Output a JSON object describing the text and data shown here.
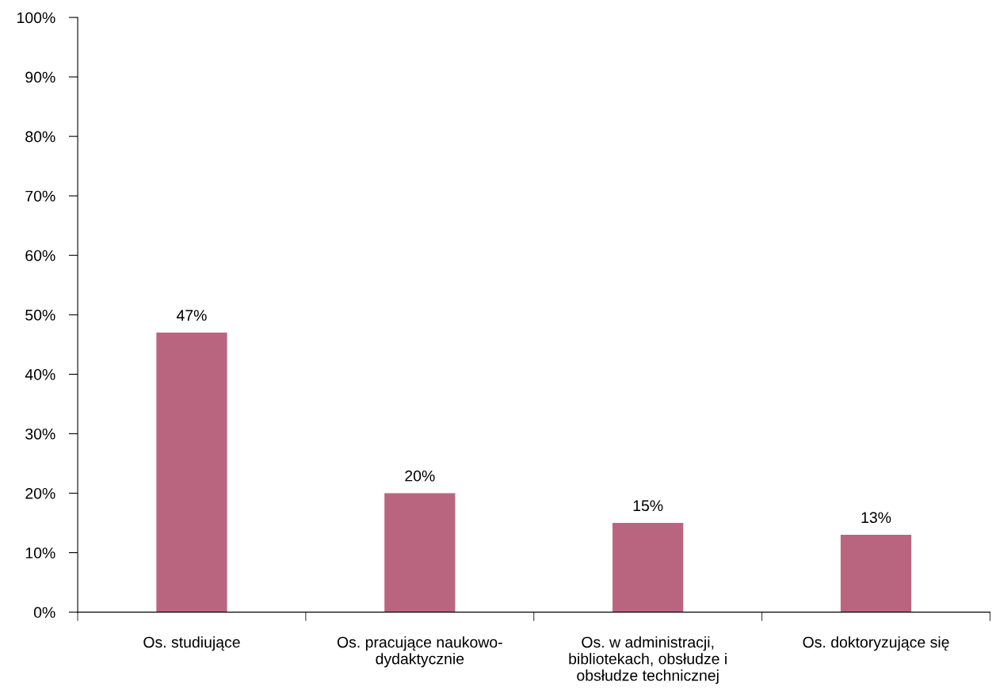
{
  "chart_data": {
    "type": "bar",
    "categories": [
      "Os. studiujące",
      "Os. pracujące naukowo-\ndydaktycznie",
      "Os. w administracji,\nbibliotekach, obsłudze i\nobsłudze technicznej",
      "Os. doktoryzujące się"
    ],
    "values": [
      47,
      20,
      15,
      13
    ],
    "value_labels": [
      "47%",
      "20%",
      "15%",
      "13%"
    ],
    "color": "#b9657f",
    "ylim": [
      0,
      100
    ],
    "yticks": [
      {
        "value": 0,
        "label": "0%"
      },
      {
        "value": 10,
        "label": "10%"
      },
      {
        "value": 20,
        "label": "20%"
      },
      {
        "value": 30,
        "label": "30%"
      },
      {
        "value": 40,
        "label": "40%"
      },
      {
        "value": 50,
        "label": "50%"
      },
      {
        "value": 60,
        "label": "60%"
      },
      {
        "value": 70,
        "label": "70%"
      },
      {
        "value": 80,
        "label": "80%"
      },
      {
        "value": 90,
        "label": "90%"
      },
      {
        "value": 100,
        "label": "100%"
      }
    ],
    "grid": false,
    "legend": false
  }
}
